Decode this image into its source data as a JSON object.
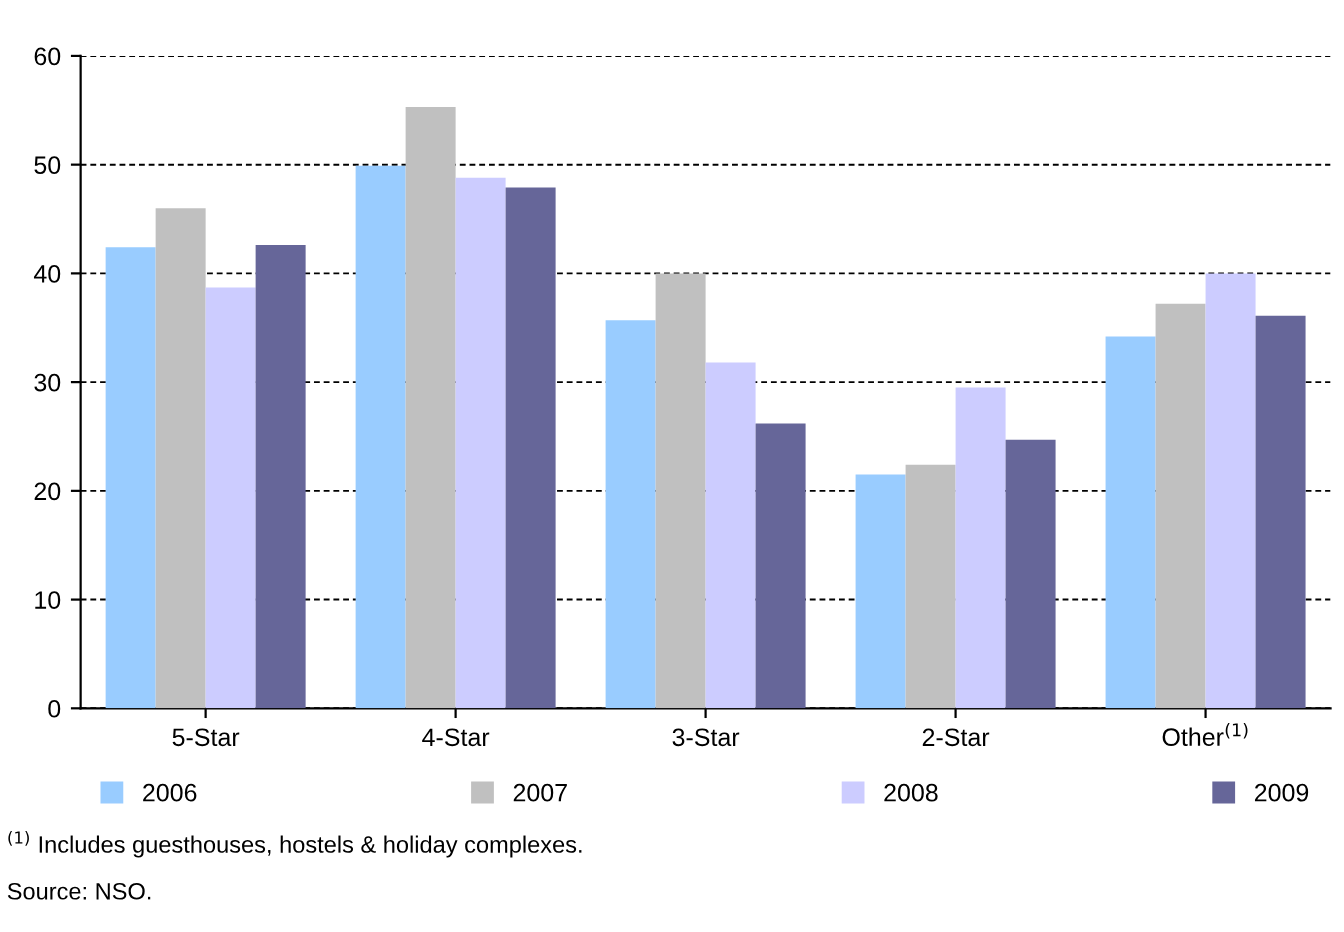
{
  "chart_data": {
    "type": "bar",
    "categories": [
      "5-Star",
      "4-Star",
      "3-Star",
      "2-Star",
      "Other$^{(1)}$"
    ],
    "series": [
      {
        "name": "2006",
        "color": "#99ccff",
        "values": [
          42.4,
          49.9,
          35.7,
          21.5,
          34.2
        ]
      },
      {
        "name": "2007",
        "color": "#c0c0c0",
        "values": [
          46.0,
          55.3,
          40.0,
          22.4,
          37.2
        ]
      },
      {
        "name": "2008",
        "color": "#ccccff",
        "values": [
          38.7,
          48.8,
          31.8,
          29.5,
          40.0
        ]
      },
      {
        "name": "2009",
        "color": "#666699",
        "values": [
          42.6,
          47.9,
          26.2,
          24.7,
          36.1
        ]
      }
    ],
    "ylim": [
      0,
      60
    ],
    "yticks": [
      0,
      10,
      20,
      30,
      40,
      50,
      60
    ],
    "grid": "y",
    "legend": "bottom",
    "annotations": [
      "$^{(1)}$ Includes guesthouses, hostels & holiday complexes.",
      "Source: NSO."
    ]
  }
}
